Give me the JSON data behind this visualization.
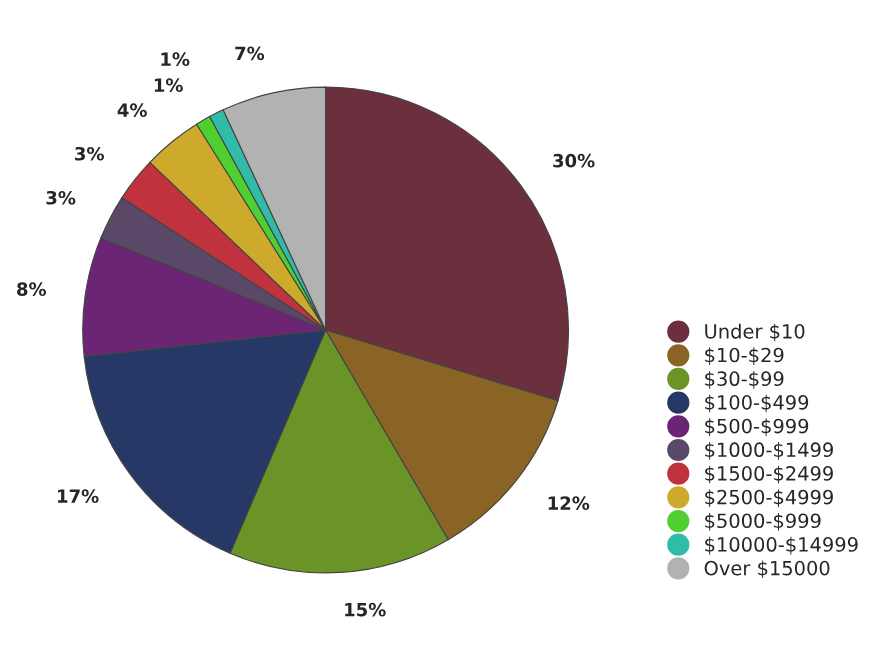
{
  "chart_data": {
    "type": "pie",
    "categories": [
      "Under $10",
      "$10-$29",
      "$30-$99",
      "$100-$499",
      "$500-$999",
      "$1000-$1499",
      "$1500-$2499",
      "$2500-$4999",
      "$5000-$999",
      "$10000-$14999",
      "Over $15000"
    ],
    "values": [
      30,
      12,
      15,
      17,
      8,
      3,
      3,
      4,
      1,
      1,
      7
    ],
    "value_labels": [
      "30%",
      "12%",
      "15%",
      "17%",
      "8%",
      "3%",
      "3%",
      "4%",
      "1%",
      "1%",
      "7%"
    ],
    "colors": [
      "#6b2f3e",
      "#8a6424",
      "#6a9428",
      "#263866",
      "#6c2474",
      "#5a4868",
      "#c0323e",
      "#ceaa2c",
      "#50d030",
      "#30bca8",
      "#b2b2b2"
    ],
    "legend": "right"
  }
}
